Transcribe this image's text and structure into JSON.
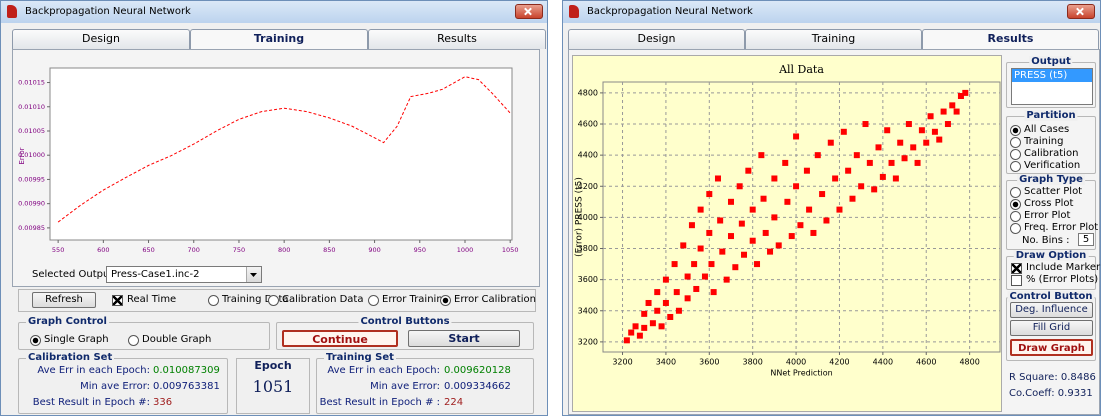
{
  "chart_data": [
    {
      "type": "line",
      "y_label": "Error",
      "x": [
        550,
        575,
        600,
        625,
        650,
        675,
        700,
        725,
        750,
        775,
        800,
        825,
        850,
        875,
        900,
        910,
        925,
        940,
        960,
        975,
        1000,
        1015,
        1030,
        1050
      ],
      "series": [
        {
          "color": "#ff0000",
          "values": [
            0.009862,
            0.009897,
            0.009928,
            0.009954,
            0.009979,
            0.009999,
            0.010023,
            0.01005,
            0.010074,
            0.01009,
            0.010097,
            0.01009,
            0.010077,
            0.01006,
            0.010036,
            0.010026,
            0.01006,
            0.010121,
            0.010128,
            0.010136,
            0.010162,
            0.010156,
            0.010128,
            0.010087
          ]
        }
      ],
      "xlim": [
        541,
        1052
      ],
      "xticks": [
        550,
        600,
        650,
        700,
        750,
        800,
        850,
        900,
        950,
        1000,
        1050
      ],
      "ylim": [
        0.009825,
        0.01018
      ],
      "yticks": [
        0.00985,
        {
          "value": 0.0099,
          "label": "0.00990"
        },
        0.00995,
        {
          "value": 0.01,
          "label": "0.01000"
        },
        0.01005,
        {
          "value": 0.0101,
          "label": "0.01010"
        },
        0.01015
      ],
      "grid": false
    },
    {
      "type": "scatter",
      "title": "All Data",
      "x_label": "NNet Prediction",
      "y_label": "(Error) PRESS (t5)",
      "x": [
        3220,
        3240,
        3260,
        3280,
        3300,
        3300,
        3320,
        3340,
        3360,
        3360,
        3380,
        3400,
        3400,
        3420,
        3440,
        3450,
        3460,
        3480,
        3500,
        3500,
        3520,
        3530,
        3540,
        3560,
        3560,
        3580,
        3600,
        3600,
        3610,
        3620,
        3640,
        3650,
        3660,
        3680,
        3700,
        3700,
        3720,
        3740,
        3750,
        3760,
        3780,
        3800,
        3800,
        3820,
        3840,
        3850,
        3860,
        3880,
        3900,
        3900,
        3920,
        3950,
        3960,
        3980,
        4000,
        4000,
        4020,
        4050,
        4060,
        4080,
        4100,
        4120,
        4140,
        4160,
        4180,
        4200,
        4220,
        4240,
        4260,
        4280,
        4300,
        4320,
        4340,
        4360,
        4380,
        4400,
        4420,
        4440,
        4460,
        4480,
        4500,
        4520,
        4540,
        4560,
        4580,
        4600,
        4620,
        4640,
        4660,
        4680,
        4700,
        4720,
        4740,
        4760,
        4780
      ],
      "series": [
        {
          "color": "#ff0000",
          "values": [
            3210,
            3260,
            3300,
            3240,
            3380,
            3290,
            3450,
            3320,
            3520,
            3400,
            3300,
            3600,
            3450,
            3360,
            3700,
            3520,
            3400,
            3820,
            3620,
            3480,
            3950,
            3700,
            3540,
            4050,
            3800,
            3620,
            4150,
            3900,
            3700,
            3520,
            4250,
            3980,
            3780,
            3600,
            4100,
            3880,
            3680,
            4200,
            3960,
            3760,
            4300,
            4050,
            3850,
            3700,
            4400,
            4120,
            3900,
            3780,
            4250,
            4000,
            3820,
            4350,
            4100,
            3880,
            4520,
            4200,
            3950,
            4300,
            4050,
            3900,
            4400,
            4150,
            3980,
            4480,
            4250,
            4050,
            4550,
            4300,
            4120,
            4400,
            4200,
            4600,
            4350,
            4180,
            4450,
            4260,
            4560,
            4350,
            4250,
            4480,
            4380,
            4600,
            4450,
            4350,
            4560,
            4480,
            4650,
            4550,
            4500,
            4680,
            4600,
            4720,
            4680,
            4780,
            4800
          ]
        }
      ],
      "xlim": [
        3110,
        4940
      ],
      "xticks": [
        3200,
        3400,
        3600,
        3800,
        4000,
        4200,
        4400,
        4600,
        4800
      ],
      "ylim": [
        3135,
        4870
      ],
      "yticks": [
        3200,
        3400,
        3600,
        3800,
        4000,
        4200,
        4400,
        4600,
        4800
      ],
      "grid": true,
      "plot_background": "#ffffcc"
    }
  ],
  "training_window": {
    "title": "Backpropagation Neural Network",
    "tabs": [
      "Design",
      "Training",
      "Results"
    ],
    "active_tab": 1,
    "selected_output_label": "Selected Output :",
    "selected_output": "Press-Case1.inc-2",
    "refresh": "Refresh",
    "real_time": {
      "label": "Real Time",
      "checked": true
    },
    "data_options": {
      "options": [
        "Training Data",
        "Calibration Data",
        "Error Training",
        "Error Calibration"
      ],
      "selected": 3
    },
    "graph_control": {
      "title": "Graph Control",
      "options": [
        "Single Graph",
        "Double Graph"
      ],
      "selected": 0
    },
    "control_buttons": {
      "title": "Control Buttons",
      "buttons": [
        "Continue",
        "Start"
      ]
    },
    "calibration_set": {
      "title": "Calibration Set",
      "rows": [
        [
          "Ave Err in each Epoch:",
          "0.010087309"
        ],
        [
          "Min ave Error:",
          "0.009763381"
        ],
        [
          "Best Result in Epoch #:",
          "336"
        ]
      ]
    },
    "epoch": {
      "title": "Epoch",
      "value": "1051"
    },
    "training_set": {
      "title": "Training Set",
      "rows": [
        [
          "Ave  Err in each Epoch:",
          "0.009620128"
        ],
        [
          "Min ave Error:",
          "0.009334662"
        ],
        [
          "Best Result in Epoch # :",
          "224"
        ]
      ]
    }
  },
  "results_window": {
    "title": "Backpropagation Neural Network",
    "tabs": [
      "Design",
      "Training",
      "Results"
    ],
    "active_tab": 2,
    "output": {
      "title": "Output",
      "items": [
        "PRESS (t5)"
      ],
      "selected": 0
    },
    "partition": {
      "title": "Partition",
      "options": [
        "All Cases",
        "Training",
        "Calibration",
        "Verification"
      ],
      "selected": 0
    },
    "graph_type": {
      "title": "Graph Type",
      "options": [
        "Scatter Plot",
        "Cross Plot",
        "Error Plot",
        "Freq. Error Plot"
      ],
      "selected": 1,
      "bins_label": "No. Bins :",
      "bins": "5"
    },
    "draw_option": {
      "title": "Draw Option",
      "options": [
        {
          "label": "Include Marker",
          "checked": true
        },
        {
          "label": "% (Error Plots)",
          "checked": false
        }
      ]
    },
    "control_button": {
      "title": "Control Button",
      "buttons": [
        "Deg. Influence",
        "Fill Grid",
        "Draw Graph"
      ]
    },
    "stats": [
      "R Square: 0.8486",
      "Co.Coeff: 0.9331"
    ]
  }
}
